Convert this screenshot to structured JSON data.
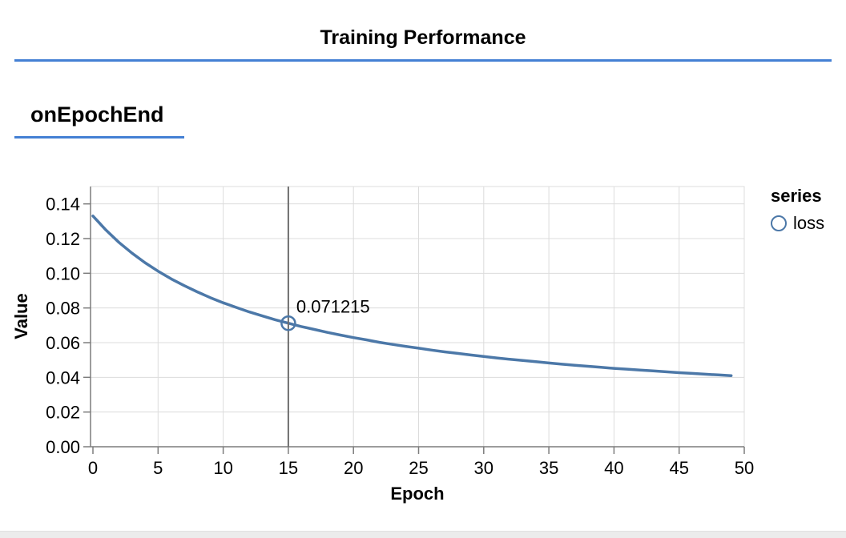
{
  "header": {
    "title": "Training Performance"
  },
  "section": {
    "heading": "onEpochEnd"
  },
  "colors": {
    "accent_blue": "#4480d4",
    "series_blue": "#4c78a8",
    "axis": "#7c7c7c",
    "grid": "#dcdcdc",
    "view_border": "#dddddd",
    "rule": "#6e6e6e",
    "footer_strip": "#ececec"
  },
  "chart_data": {
    "type": "line",
    "title": "",
    "xlabel": "Epoch",
    "ylabel": "Value",
    "xlim": [
      0,
      50
    ],
    "ylim": [
      0,
      0.15
    ],
    "grid": true,
    "x_ticks": [
      0,
      5,
      10,
      15,
      20,
      25,
      30,
      35,
      40,
      45,
      50
    ],
    "x_tick_labels": [
      "0",
      "5",
      "10",
      "15",
      "20",
      "25",
      "30",
      "35",
      "40",
      "45",
      "50"
    ],
    "y_ticks": [
      0,
      0.02,
      0.04,
      0.06,
      0.08,
      0.1,
      0.12,
      0.14
    ],
    "y_tick_labels": [
      "0.00",
      "0.02",
      "0.04",
      "0.06",
      "0.08",
      "0.10",
      "0.12",
      "0.14"
    ],
    "legend": {
      "position": "right",
      "title": "series",
      "items": [
        {
          "label": "loss",
          "color": "#4c78a8",
          "symbol": "open-circle"
        }
      ]
    },
    "series": [
      {
        "name": "loss",
        "color": "#4c78a8",
        "x": [
          0,
          1,
          2,
          3,
          4,
          5,
          6,
          7,
          8,
          9,
          10,
          11,
          12,
          13,
          14,
          15,
          16,
          17,
          18,
          19,
          20,
          21,
          22,
          23,
          24,
          25,
          26,
          27,
          28,
          29,
          30,
          31,
          32,
          33,
          34,
          35,
          36,
          37,
          38,
          39,
          40,
          41,
          42,
          43,
          44,
          45,
          46,
          47,
          48,
          49
        ],
        "values": [
          0.133,
          0.1249,
          0.1178,
          0.1116,
          0.1061,
          0.1012,
          0.0968,
          0.0929,
          0.0893,
          0.086,
          0.083,
          0.0803,
          0.0777,
          0.0754,
          0.0732,
          0.071215,
          0.0693,
          0.0676,
          0.0659,
          0.0644,
          0.0629,
          0.0616,
          0.0602,
          0.059,
          0.0579,
          0.0568,
          0.0557,
          0.0547,
          0.0538,
          0.0529,
          0.052,
          0.0512,
          0.0504,
          0.0497,
          0.049,
          0.0483,
          0.0476,
          0.047,
          0.0464,
          0.0458,
          0.0452,
          0.0447,
          0.0442,
          0.0437,
          0.0432,
          0.0427,
          0.0423,
          0.0418,
          0.0414,
          0.041
        ]
      }
    ],
    "annotation": {
      "x": 15,
      "y": 0.071215,
      "label": "0.071215",
      "marker": "open-circle"
    }
  }
}
